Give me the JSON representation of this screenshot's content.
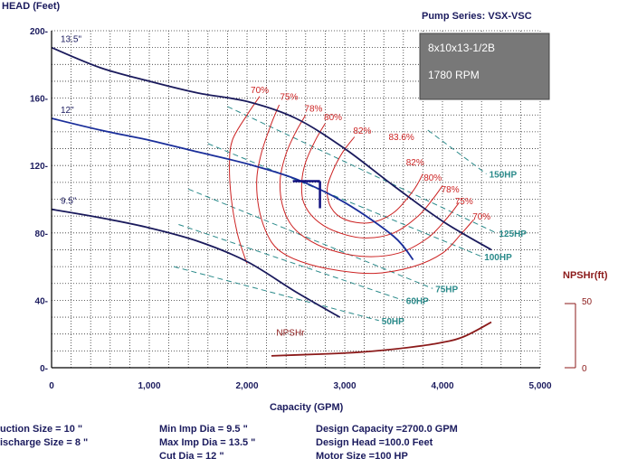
{
  "chart_data": {
    "type": "line",
    "title": "Pump Series: VSX-VSC",
    "xlabel": "Capacity (GPM)",
    "ylabel": "HEAD (Feet)",
    "xlim": [
      0,
      5000
    ],
    "ylim": [
      0,
      200
    ],
    "x_ticks": [
      "0",
      "1,000",
      "2,000",
      "3,000",
      "4,000",
      "5,000"
    ],
    "y_ticks": [
      "0-",
      "40-",
      "80-",
      "120-",
      "160-",
      "200-"
    ],
    "grid": true,
    "info_box": {
      "model": "8x10x13-1/2B",
      "speed": "1780 RPM"
    },
    "npsh_axis": {
      "label": "NPSHr(ft)",
      "min": "0",
      "max": "50",
      "min_value": 0,
      "max_value": 50
    },
    "impeller_curves": [
      {
        "label": "13.5\"",
        "color": "#1a1a5c",
        "points": [
          [
            0,
            190
          ],
          [
            500,
            178
          ],
          [
            1000,
            170
          ],
          [
            1500,
            163
          ],
          [
            2000,
            158
          ],
          [
            2500,
            148
          ],
          [
            3000,
            130
          ],
          [
            3500,
            108
          ],
          [
            4000,
            87
          ],
          [
            4500,
            70
          ]
        ]
      },
      {
        "label": "12\"",
        "color": "#1a2e9a",
        "points": [
          [
            0,
            148
          ],
          [
            500,
            141
          ],
          [
            1000,
            135
          ],
          [
            1500,
            128
          ],
          [
            2000,
            121
          ],
          [
            2500,
            112
          ],
          [
            3000,
            98
          ],
          [
            3500,
            78
          ],
          [
            3700,
            64
          ]
        ]
      },
      {
        "label": "9.5\"",
        "color": "#1a1a5c",
        "points": [
          [
            0,
            94
          ],
          [
            500,
            89
          ],
          [
            1000,
            83
          ],
          [
            1500,
            75
          ],
          [
            2000,
            63
          ],
          [
            2500,
            45
          ],
          [
            2950,
            30
          ]
        ]
      }
    ],
    "efficiency_labels": [
      {
        "text": "70%",
        "x": 2130,
        "y": 163
      },
      {
        "text": "75%",
        "x": 2430,
        "y": 159
      },
      {
        "text": "78%",
        "x": 2680,
        "y": 152
      },
      {
        "text": "80%",
        "x": 2880,
        "y": 147
      },
      {
        "text": "82%",
        "x": 3180,
        "y": 139
      },
      {
        "text": "83.6%",
        "x": 3580,
        "y": 135
      },
      {
        "text": "82%",
        "x": 3720,
        "y": 120
      },
      {
        "text": "80%",
        "x": 3900,
        "y": 111
      },
      {
        "text": "78%",
        "x": 4080,
        "y": 104
      },
      {
        "text": "75%",
        "x": 4220,
        "y": 97
      },
      {
        "text": "70%",
        "x": 4400,
        "y": 88
      }
    ],
    "efficiency_contours": [
      {
        "name": "70%",
        "points": [
          [
            2130,
            161
          ],
          [
            2000,
            150
          ],
          [
            1850,
            135
          ],
          [
            1820,
            120
          ],
          [
            1840,
            100
          ],
          [
            1900,
            80
          ],
          [
            1980,
            65
          ],
          [
            2000,
            62
          ]
        ]
      },
      {
        "name": "75%",
        "points": [
          [
            2330,
            156
          ],
          [
            2250,
            145
          ],
          [
            2150,
            128
          ],
          [
            2100,
            112
          ],
          [
            2120,
            95
          ],
          [
            2200,
            80
          ],
          [
            2320,
            70
          ],
          [
            2550,
            63
          ],
          [
            2900,
            58
          ],
          [
            3300,
            56
          ],
          [
            3700,
            60
          ],
          [
            4000,
            68
          ],
          [
            4200,
            80
          ],
          [
            4320,
            88
          ]
        ]
      },
      {
        "name": "78%",
        "points": [
          [
            2600,
            150
          ],
          [
            2500,
            140
          ],
          [
            2400,
            127
          ],
          [
            2340,
            112
          ],
          [
            2360,
            97
          ],
          [
            2450,
            85
          ],
          [
            2600,
            77
          ],
          [
            2850,
            70
          ],
          [
            3200,
            66
          ],
          [
            3550,
            68
          ],
          [
            3850,
            77
          ],
          [
            4050,
            89
          ],
          [
            4170,
            98
          ]
        ]
      },
      {
        "name": "80%",
        "points": [
          [
            2800,
            145
          ],
          [
            2700,
            135
          ],
          [
            2600,
            122
          ],
          [
            2560,
            110
          ],
          [
            2580,
            98
          ],
          [
            2700,
            88
          ],
          [
            2900,
            81
          ],
          [
            3200,
            77
          ],
          [
            3500,
            80
          ],
          [
            3750,
            90
          ],
          [
            3900,
            100
          ],
          [
            4000,
            108
          ]
        ]
      },
      {
        "name": "82%",
        "points": [
          [
            3100,
            137
          ],
          [
            2980,
            128
          ],
          [
            2880,
            117
          ],
          [
            2820,
            106
          ],
          [
            2860,
            95
          ],
          [
            3000,
            88
          ],
          [
            3250,
            86
          ],
          [
            3500,
            92
          ],
          [
            3700,
            105
          ],
          [
            3800,
            115
          ]
        ]
      }
    ],
    "power_lines": [
      {
        "label": "150HP",
        "points": [
          [
            3850,
            141
          ],
          [
            4450,
            115
          ]
        ]
      },
      {
        "label": "125HP",
        "points": [
          [
            1800,
            155
          ],
          [
            4550,
            80
          ]
        ]
      },
      {
        "label": "100HP",
        "points": [
          [
            1600,
            133
          ],
          [
            4400,
            66
          ]
        ]
      },
      {
        "label": "75HP",
        "points": [
          [
            1400,
            106
          ],
          [
            3900,
            47
          ]
        ]
      },
      {
        "label": "60HP",
        "points": [
          [
            1300,
            85
          ],
          [
            3600,
            40
          ]
        ]
      },
      {
        "label": "50HP",
        "points": [
          [
            1250,
            60
          ],
          [
            3350,
            28
          ]
        ]
      }
    ],
    "npshr": {
      "label": "NPSHr",
      "points": [
        [
          2250,
          7
        ],
        [
          2700,
          8
        ],
        [
          3100,
          9
        ],
        [
          3500,
          11
        ],
        [
          3900,
          14
        ],
        [
          4200,
          18
        ],
        [
          4500,
          27
        ]
      ]
    },
    "design_point": {
      "flow": 2700,
      "head": 100
    }
  },
  "footer": {
    "col1": [
      "uction Size = 10 \"",
      "ischarge Size = 8 \""
    ],
    "col2": [
      "Min Imp Dia = 9.5 \"",
      "Max Imp Dia = 13.5 \"",
      "Cut Dia = 12 \""
    ],
    "col3": [
      "Design Capacity =2700.0 GPM",
      "Design Head =100.0 Feet",
      "Motor Size =100 HP"
    ]
  }
}
